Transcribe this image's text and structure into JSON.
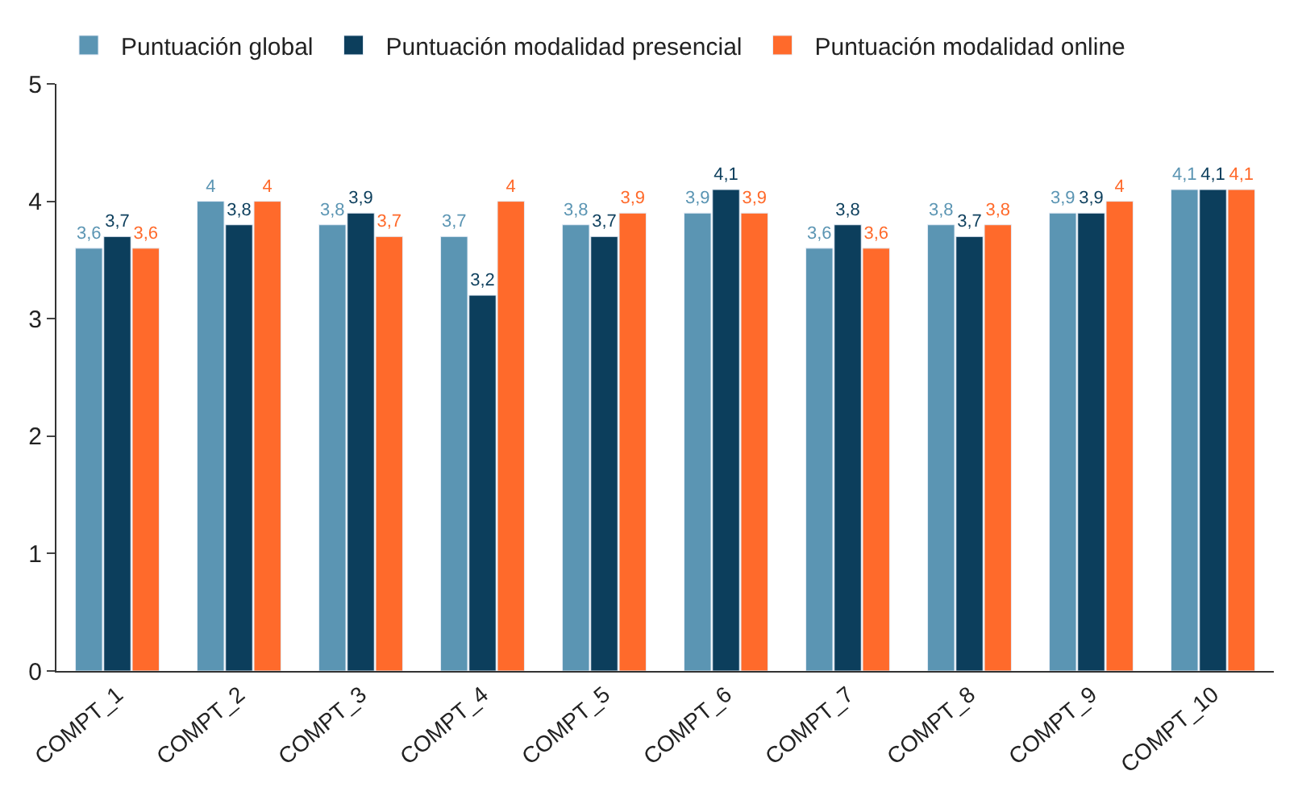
{
  "chart_data": {
    "type": "bar",
    "categories": [
      "COMPT_1",
      "COMPT_2",
      "COMPT_3",
      "COMPT_4",
      "COMPT_5",
      "COMPT_6",
      "COMPT_7",
      "COMPT_8",
      "COMPT_9",
      "COMPT_10"
    ],
    "series": [
      {
        "name": "Puntuación global",
        "color": "#5b95b3",
        "values": [
          3.6,
          4,
          3.8,
          3.7,
          3.8,
          3.9,
          3.6,
          3.8,
          3.9,
          4.1
        ],
        "value_labels": [
          "3,6",
          "4",
          "3,8",
          "3,7",
          "3,8",
          "3,9",
          "3,6",
          "3,8",
          "3,9",
          "4,1"
        ]
      },
      {
        "name": "Puntuación modalidad presencial",
        "color": "#0c3e5c",
        "values": [
          3.7,
          3.8,
          3.9,
          3.2,
          3.7,
          4.1,
          3.8,
          3.7,
          3.9,
          4.1
        ],
        "value_labels": [
          "3,7",
          "3,8",
          "3,9",
          "3,2",
          "3,7",
          "4,1",
          "3,8",
          "3,7",
          "3,9",
          "4,1"
        ]
      },
      {
        "name": "Puntuación modalidad online",
        "color": "#ff6a2b",
        "values": [
          3.6,
          4,
          3.7,
          4,
          3.9,
          3.9,
          3.6,
          3.8,
          4,
          4.1
        ],
        "value_labels": [
          "3,6",
          "4",
          "3,7",
          "4",
          "3,9",
          "3,9",
          "3,6",
          "3,8",
          "4",
          "4,1"
        ]
      }
    ],
    "ylim": [
      0,
      5
    ],
    "yticks": [
      0,
      1,
      2,
      3,
      4,
      5
    ],
    "legend": "top left"
  }
}
